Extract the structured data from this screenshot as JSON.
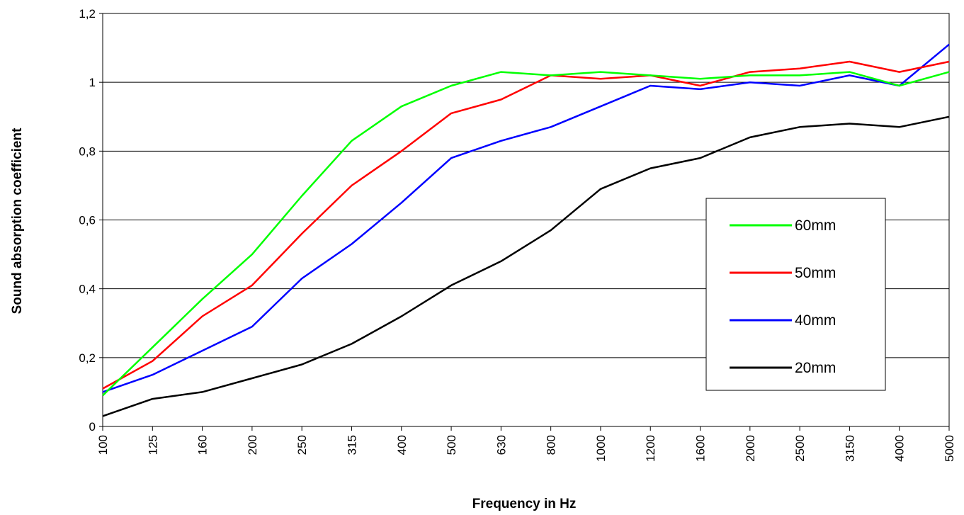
{
  "chart_data": {
    "type": "line",
    "title": "",
    "xlabel": "Frequency in Hz",
    "ylabel": "Sound absorption coefficient",
    "categories": [
      "100",
      "125",
      "160",
      "200",
      "250",
      "315",
      "400",
      "500",
      "630",
      "800",
      "1000",
      "1200",
      "1600",
      "2000",
      "2500",
      "3150",
      "4000",
      "5000"
    ],
    "y_ticks": [
      "0",
      "0,2",
      "0,4",
      "0,6",
      "0,8",
      "1",
      "1,2"
    ],
    "ylim": [
      0,
      1.2
    ],
    "grid": "horizontal",
    "legend_position": "right",
    "series": [
      {
        "name": "60mm",
        "color": "#00ff00",
        "values": [
          0.09,
          0.23,
          0.37,
          0.5,
          0.67,
          0.83,
          0.93,
          0.99,
          1.03,
          1.02,
          1.03,
          1.02,
          1.01,
          1.02,
          1.02,
          1.03,
          0.99,
          1.03
        ]
      },
      {
        "name": "50mm",
        "color": "#ff0000",
        "values": [
          0.11,
          0.19,
          0.32,
          0.41,
          0.56,
          0.7,
          0.8,
          0.91,
          0.95,
          1.02,
          1.01,
          1.02,
          0.99,
          1.03,
          1.04,
          1.06,
          1.03,
          1.06
        ]
      },
      {
        "name": "40mm",
        "color": "#0000ff",
        "values": [
          0.1,
          0.15,
          0.22,
          0.29,
          0.43,
          0.53,
          0.65,
          0.78,
          0.83,
          0.87,
          0.93,
          0.99,
          0.98,
          1.0,
          0.99,
          1.02,
          0.99,
          1.11
        ]
      },
      {
        "name": "20mm",
        "color": "#000000",
        "values": [
          0.03,
          0.08,
          0.1,
          0.14,
          0.18,
          0.24,
          0.32,
          0.41,
          0.48,
          0.57,
          0.69,
          0.75,
          0.78,
          0.84,
          0.87,
          0.88,
          0.87,
          0.9
        ]
      }
    ]
  }
}
